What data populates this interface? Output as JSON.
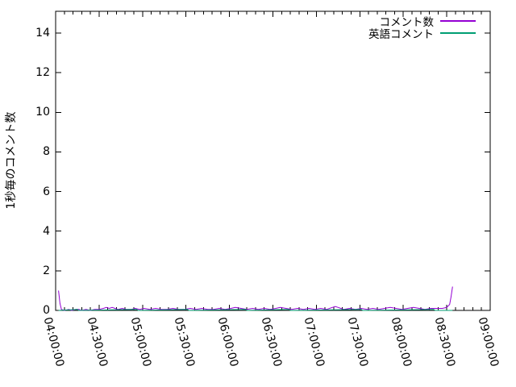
{
  "chart_data": {
    "type": "line",
    "title": "",
    "xlabel": "",
    "ylabel": "1秒毎のコメント数",
    "xlim": [
      "04:00:00",
      "09:00:00"
    ],
    "ylim": [
      0,
      15.1
    ],
    "x_ticks": [
      "04:00:00",
      "04:30:00",
      "05:00:00",
      "05:30:00",
      "06:00:00",
      "06:30:00",
      "07:00:00",
      "07:30:00",
      "08:00:00",
      "08:30:00",
      "09:00:00"
    ],
    "y_ticks": [
      0,
      2,
      4,
      6,
      8,
      10,
      12,
      14
    ],
    "x_minor_tick_interval_min": 6,
    "grid": "off",
    "legend_position": "top-right-inside",
    "background": "#FFFFFF",
    "axis_color": "#000000",
    "series": [
      {
        "name": "コメント数",
        "color": "#9400D3",
        "points": [
          [
            "04:02:00",
            1.0
          ],
          [
            "04:03:00",
            0.35
          ],
          [
            "04:04:00",
            0.05
          ],
          [
            "04:06:00",
            0
          ],
          [
            "04:09:00",
            0.05
          ],
          [
            "04:11:00",
            0
          ],
          [
            "04:14:00",
            0.05
          ],
          [
            "04:16:00",
            0.05
          ],
          [
            "04:18:00",
            0
          ],
          [
            "04:21:00",
            0.05
          ],
          [
            "04:24:00",
            0
          ],
          [
            "04:27:00",
            0.05
          ],
          [
            "04:30:00",
            0.05
          ],
          [
            "04:33:00",
            0.1
          ],
          [
            "04:35:00",
            0.15
          ],
          [
            "04:37:00",
            0.1
          ],
          [
            "04:39:00",
            0.15
          ],
          [
            "04:41:00",
            0.1
          ],
          [
            "04:43:00",
            0.05
          ],
          [
            "04:46:00",
            0.1
          ],
          [
            "04:49:00",
            0.05
          ],
          [
            "04:52:00",
            0.05
          ],
          [
            "04:55:00",
            0.1
          ],
          [
            "04:58:00",
            0.05
          ],
          [
            "05:01:00",
            0.1
          ],
          [
            "05:05:00",
            0.05
          ],
          [
            "05:09:00",
            0.1
          ],
          [
            "05:13:00",
            0.05
          ],
          [
            "05:17:00",
            0.05
          ],
          [
            "05:21:00",
            0.1
          ],
          [
            "05:25:00",
            0.05
          ],
          [
            "05:29:00",
            0.05
          ],
          [
            "05:33:00",
            0.1
          ],
          [
            "05:37:00",
            0.05
          ],
          [
            "05:41:00",
            0.1
          ],
          [
            "05:45:00",
            0.05
          ],
          [
            "05:49:00",
            0.05
          ],
          [
            "05:53:00",
            0.1
          ],
          [
            "05:57:00",
            0.05
          ],
          [
            "06:01:00",
            0.1
          ],
          [
            "06:04:00",
            0.15
          ],
          [
            "06:08:00",
            0.1
          ],
          [
            "06:12:00",
            0.05
          ],
          [
            "06:16:00",
            0.1
          ],
          [
            "06:20:00",
            0.05
          ],
          [
            "06:24:00",
            0.1
          ],
          [
            "06:28:00",
            0.05
          ],
          [
            "06:32:00",
            0.1
          ],
          [
            "06:35:00",
            0.15
          ],
          [
            "06:39:00",
            0.1
          ],
          [
            "06:43:00",
            0.05
          ],
          [
            "06:47:00",
            0.1
          ],
          [
            "06:51:00",
            0.05
          ],
          [
            "06:55:00",
            0.1
          ],
          [
            "06:59:00",
            0.05
          ],
          [
            "07:03:00",
            0.1
          ],
          [
            "07:07:00",
            0.05
          ],
          [
            "07:11:00",
            0.15
          ],
          [
            "07:13:00",
            0.2
          ],
          [
            "07:15:00",
            0.15
          ],
          [
            "07:19:00",
            0.05
          ],
          [
            "07:23:00",
            0.1
          ],
          [
            "07:27:00",
            0.05
          ],
          [
            "07:31:00",
            0.1
          ],
          [
            "07:35:00",
            0.05
          ],
          [
            "07:39:00",
            0.1
          ],
          [
            "07:43:00",
            0.05
          ],
          [
            "07:47:00",
            0.1
          ],
          [
            "07:51:00",
            0.15
          ],
          [
            "07:55:00",
            0.1
          ],
          [
            "07:59:00",
            0.05
          ],
          [
            "08:03:00",
            0.1
          ],
          [
            "08:07:00",
            0.15
          ],
          [
            "08:11:00",
            0.1
          ],
          [
            "08:15:00",
            0.05
          ],
          [
            "08:19:00",
            0.1
          ],
          [
            "08:23:00",
            0.1
          ],
          [
            "08:27:00",
            0.1
          ],
          [
            "08:30:00",
            0.15
          ],
          [
            "08:32:00",
            0.3
          ],
          [
            "08:33:00",
            0.7
          ],
          [
            "08:34:00",
            1.2
          ]
        ]
      },
      {
        "name": "英語コメント",
        "color": "#009E73",
        "points": [
          [
            "04:02:00",
            0
          ],
          [
            "04:15:00",
            0.05
          ],
          [
            "04:16:00",
            0
          ],
          [
            "04:56:00",
            0.05
          ],
          [
            "04:57:00",
            0
          ],
          [
            "05:31:00",
            0.05
          ],
          [
            "05:32:00",
            0
          ],
          [
            "06:11:00",
            0.05
          ],
          [
            "06:12:00",
            0
          ],
          [
            "06:41:00",
            0.05
          ],
          [
            "06:42:00",
            0
          ],
          [
            "07:31:00",
            0.05
          ],
          [
            "07:32:00",
            0
          ],
          [
            "08:21:00",
            0.05
          ],
          [
            "08:22:00",
            0
          ],
          [
            "08:34:00",
            0
          ]
        ]
      }
    ]
  }
}
